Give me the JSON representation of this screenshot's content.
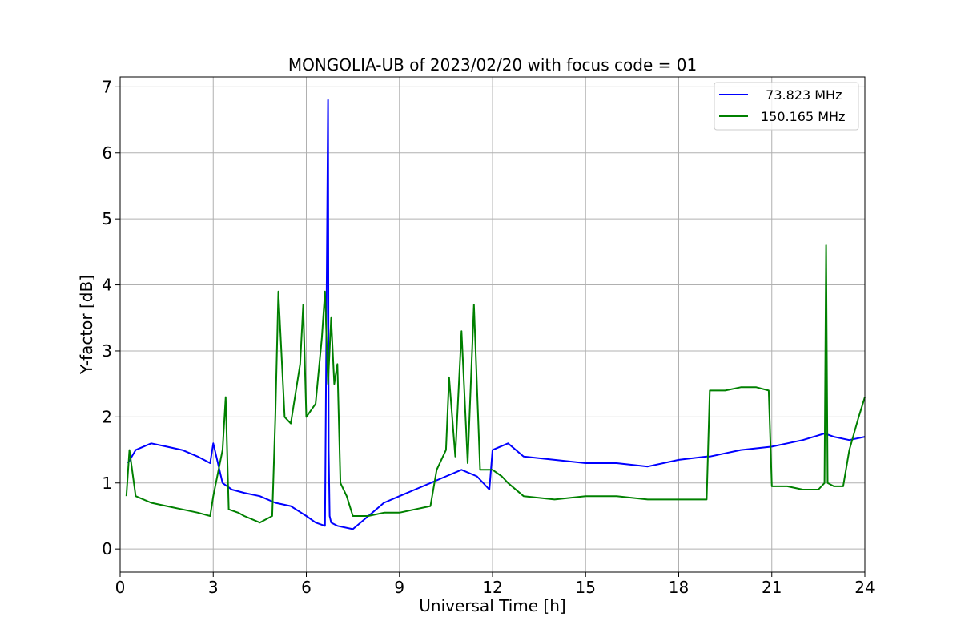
{
  "chart_data": {
    "type": "line",
    "title": "MONGOLIA-UB of 2023/02/20 with focus code = 01",
    "xlabel": "Universal Time [h]",
    "ylabel": "Y-factor [dB]",
    "xlim": [
      0,
      24
    ],
    "ylim": [
      -0.35,
      7.15
    ],
    "xticks": [
      0,
      3,
      6,
      9,
      12,
      15,
      18,
      21,
      24
    ],
    "yticks": [
      0,
      1,
      2,
      3,
      4,
      5,
      6,
      7
    ],
    "grid": true,
    "legend_position": "top-right",
    "series": [
      {
        "name": "73.823 MHz",
        "legend_label": "  73.823 MHz",
        "color": "#0000ff",
        "x": [
          0.25,
          0.5,
          1.0,
          1.5,
          2.0,
          2.5,
          2.9,
          3.0,
          3.3,
          3.6,
          4.0,
          4.5,
          5.0,
          5.5,
          6.0,
          6.3,
          6.6,
          6.7,
          6.72,
          6.75,
          6.8,
          7.0,
          7.5,
          8.0,
          8.5,
          9.0,
          9.5,
          10.0,
          10.5,
          11.0,
          11.5,
          11.9,
          12.0,
          12.5,
          13.0,
          14.0,
          15.0,
          16.0,
          17.0,
          18.0,
          18.9,
          19.0,
          19.5,
          20.0,
          21.0,
          21.5,
          22.0,
          22.7,
          23.0,
          23.5,
          24.0
        ],
        "y": [
          1.3,
          1.5,
          1.6,
          1.55,
          1.5,
          1.4,
          1.3,
          1.6,
          1.0,
          0.9,
          0.85,
          0.8,
          0.7,
          0.65,
          0.5,
          0.4,
          0.35,
          6.8,
          1.5,
          0.5,
          0.4,
          0.35,
          0.3,
          0.5,
          0.7,
          0.8,
          0.9,
          1.0,
          1.1,
          1.2,
          1.1,
          0.9,
          1.5,
          1.6,
          1.4,
          1.35,
          1.3,
          1.3,
          1.25,
          1.35,
          1.4,
          1.4,
          1.45,
          1.5,
          1.55,
          1.6,
          1.65,
          1.75,
          1.7,
          1.65,
          1.7
        ]
      },
      {
        "name": "150.165 MHz",
        "legend_label": "150.165 MHz",
        "color": "#008000",
        "x": [
          0.2,
          0.3,
          0.5,
          1.0,
          1.5,
          2.0,
          2.5,
          2.9,
          3.0,
          3.3,
          3.4,
          3.5,
          3.8,
          4.0,
          4.5,
          4.9,
          5.0,
          5.1,
          5.3,
          5.5,
          5.8,
          5.9,
          6.0,
          6.3,
          6.5,
          6.6,
          6.7,
          6.8,
          6.9,
          7.0,
          7.1,
          7.3,
          7.5,
          8.0,
          8.5,
          9.0,
          9.5,
          10.0,
          10.2,
          10.5,
          10.6,
          10.8,
          11.0,
          11.2,
          11.4,
          11.6,
          12.0,
          12.3,
          12.5,
          13.0,
          14.0,
          15.0,
          16.0,
          17.0,
          18.0,
          18.9,
          19.0,
          19.5,
          20.0,
          20.5,
          20.9,
          21.0,
          21.5,
          22.0,
          22.5,
          22.7,
          22.75,
          22.8,
          23.0,
          23.3,
          23.5,
          23.8,
          24.0
        ],
        "y": [
          0.8,
          1.5,
          0.8,
          0.7,
          0.65,
          0.6,
          0.55,
          0.5,
          0.8,
          1.5,
          2.3,
          0.6,
          0.55,
          0.5,
          0.4,
          0.5,
          2.0,
          3.9,
          2.0,
          1.9,
          2.8,
          3.7,
          2.0,
          2.2,
          3.2,
          3.9,
          2.5,
          3.5,
          2.5,
          2.8,
          1.0,
          0.8,
          0.5,
          0.5,
          0.55,
          0.55,
          0.6,
          0.65,
          1.2,
          1.5,
          2.6,
          1.4,
          3.3,
          1.3,
          3.7,
          1.2,
          1.2,
          1.1,
          1.0,
          0.8,
          0.75,
          0.8,
          0.8,
          0.75,
          0.75,
          0.75,
          2.4,
          2.4,
          2.45,
          2.45,
          2.4,
          0.95,
          0.95,
          0.9,
          0.9,
          1.0,
          4.6,
          1.0,
          0.95,
          0.95,
          1.5,
          2.0,
          2.3
        ]
      }
    ]
  }
}
